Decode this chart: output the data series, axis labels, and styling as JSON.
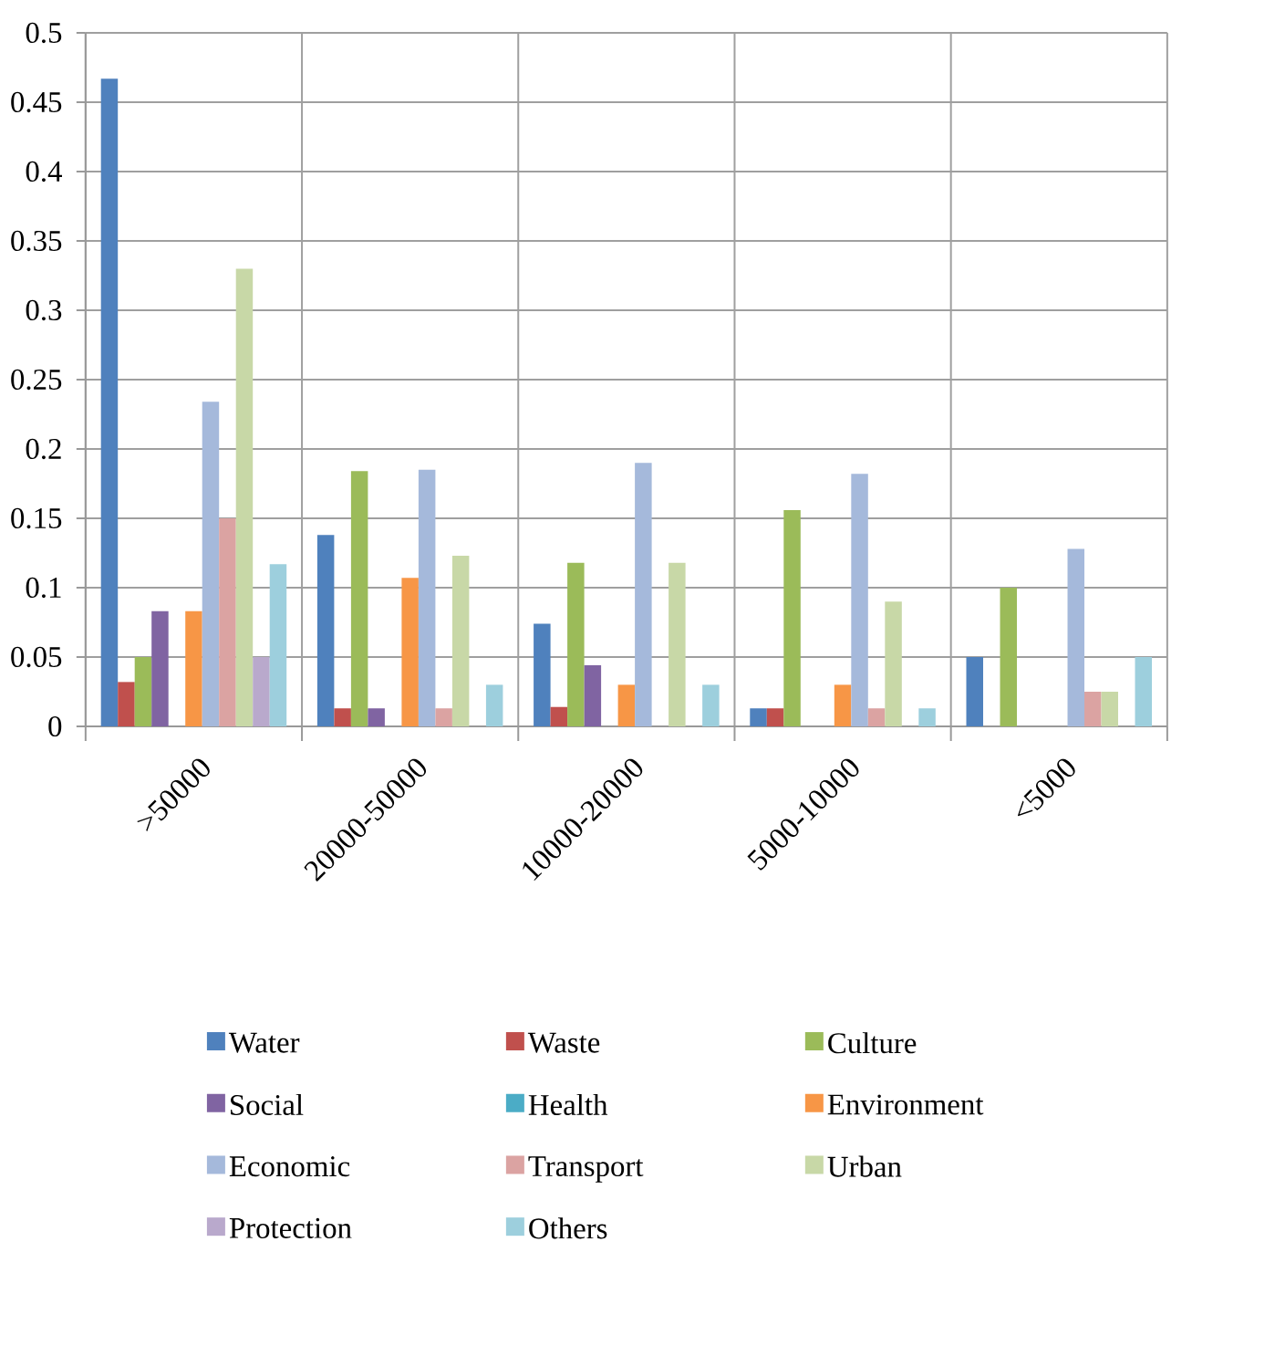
{
  "chart_data": {
    "type": "bar",
    "categories": [
      ">50000",
      "20000-50000",
      "10000-20000",
      "5000-10000",
      "<5000"
    ],
    "series": [
      {
        "name": "Water",
        "color": "#4f81bd",
        "values": [
          0.467,
          0.138,
          0.074,
          0.013,
          0.05
        ]
      },
      {
        "name": "Waste",
        "color": "#c0504d",
        "values": [
          0.032,
          0.013,
          0.014,
          0.013,
          0
        ]
      },
      {
        "name": "Culture",
        "color": "#9bbb59",
        "values": [
          0.05,
          0.184,
          0.118,
          0.156,
          0.1
        ]
      },
      {
        "name": "Social",
        "color": "#8064a2",
        "values": [
          0.083,
          0.013,
          0.044,
          0,
          0
        ]
      },
      {
        "name": "Health",
        "color": "#4bacc6",
        "values": [
          0,
          0,
          0,
          0,
          0
        ]
      },
      {
        "name": "Environment",
        "color": "#f79646",
        "values": [
          0.083,
          0.107,
          0.03,
          0.03,
          0
        ]
      },
      {
        "name": "Economic",
        "color": "#a5b9db",
        "values": [
          0.234,
          0.185,
          0.19,
          0.182,
          0.128
        ]
      },
      {
        "name": "Transport",
        "color": "#dba3a2",
        "values": [
          0.15,
          0.013,
          0,
          0.013,
          0.025
        ]
      },
      {
        "name": "Urban",
        "color": "#c8d8a7",
        "values": [
          0.33,
          0.123,
          0.118,
          0.09,
          0.025
        ]
      },
      {
        "name": "Protection",
        "color": "#b9a9cc",
        "values": [
          0.05,
          0,
          0,
          0,
          0
        ]
      },
      {
        "name": "Others",
        "color": "#9dcfdd",
        "values": [
          0.117,
          0.03,
          0.03,
          0.013,
          0.05
        ]
      }
    ],
    "ylim": [
      0,
      0.5
    ],
    "yticks": [
      0,
      0.05,
      0.1,
      0.15,
      0.2,
      0.25,
      0.3,
      0.35,
      0.4,
      0.45,
      0.5
    ],
    "grid": true,
    "legend": "bottom"
  }
}
